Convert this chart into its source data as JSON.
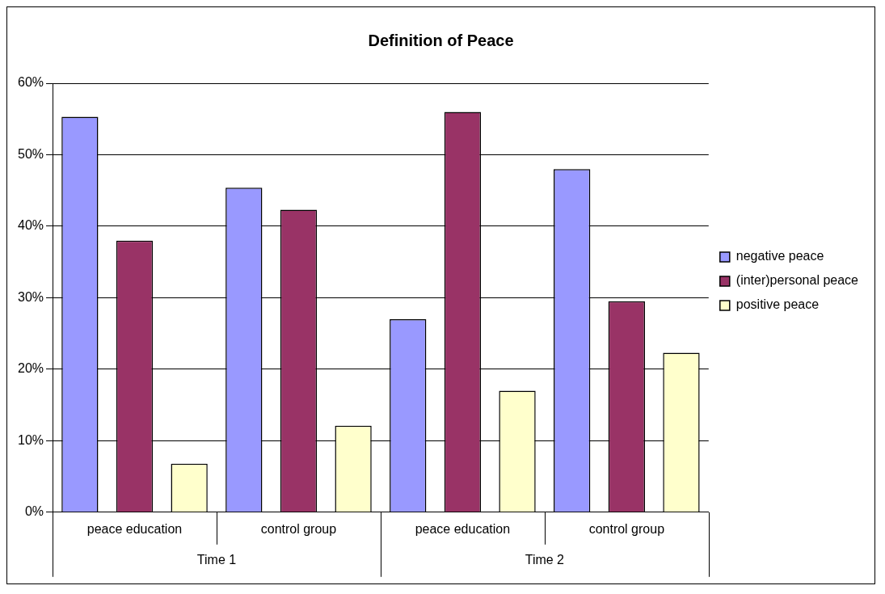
{
  "chart_data": {
    "type": "bar",
    "title": "Definition of Peace",
    "categories": [
      "peace education",
      "control group",
      "peace education",
      "control group"
    ],
    "series": [
      {
        "name": "negative peace",
        "color": "#9999ff",
        "values": [
          55.3,
          45.4,
          27,
          48
        ]
      },
      {
        "name": "(inter)personal peace",
        "color": "#993366",
        "values": [
          38,
          42.3,
          56,
          29.5
        ]
      },
      {
        "name": "positive peace",
        "color": "#ffffcc",
        "values": [
          6.8,
          12.1,
          17,
          22.3
        ]
      }
    ],
    "ylim": [
      0,
      60
    ],
    "yticks": [
      {
        "value": 0,
        "label": "0%"
      },
      {
        "value": 10,
        "label": "10%"
      },
      {
        "value": 20,
        "label": "20%"
      },
      {
        "value": 30,
        "label": "30%"
      },
      {
        "value": 40,
        "label": "40%"
      },
      {
        "value": 50,
        "label": "50%"
      },
      {
        "value": 60,
        "label": "60%"
      }
    ],
    "grid": "y",
    "legend": "right",
    "annotations": [
      "Time 1",
      "Time 2"
    ]
  }
}
